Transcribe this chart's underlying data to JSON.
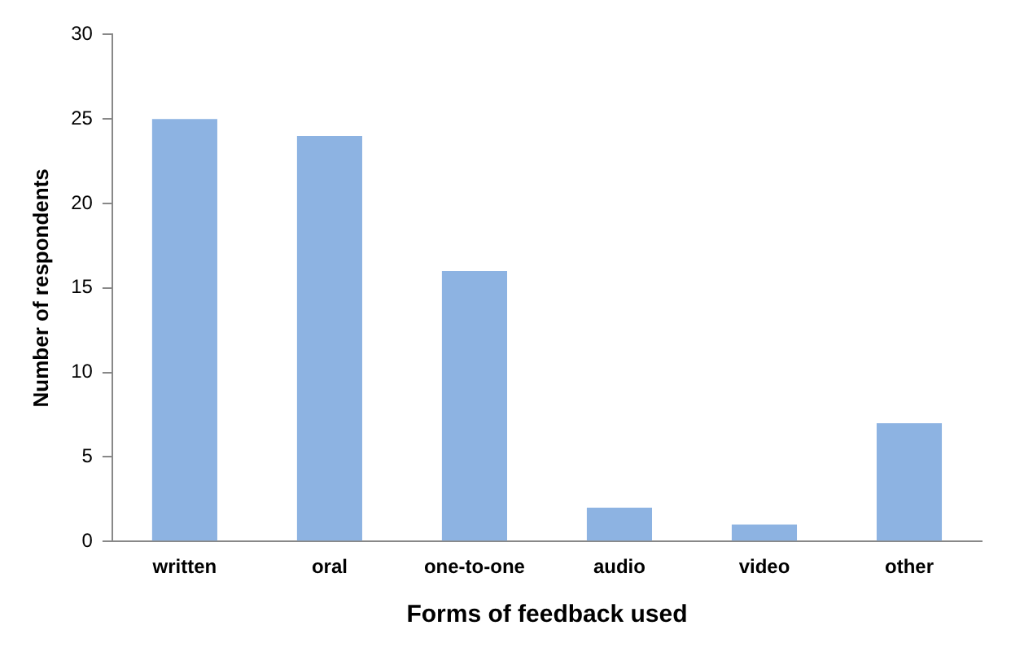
{
  "chart_data": {
    "type": "bar",
    "xlabel": "Forms of feedback used",
    "ylabel": "Number of respondents",
    "categories": [
      "written",
      "oral",
      "one-to-one",
      "audio",
      "video",
      "other"
    ],
    "values": [
      25,
      24,
      16,
      2,
      1,
      7
    ],
    "color": "#8db3e2",
    "ylim": [
      0,
      30
    ],
    "yticks": [
      0,
      5,
      10,
      15,
      20,
      25,
      30
    ],
    "grid": false,
    "legend": false
  }
}
